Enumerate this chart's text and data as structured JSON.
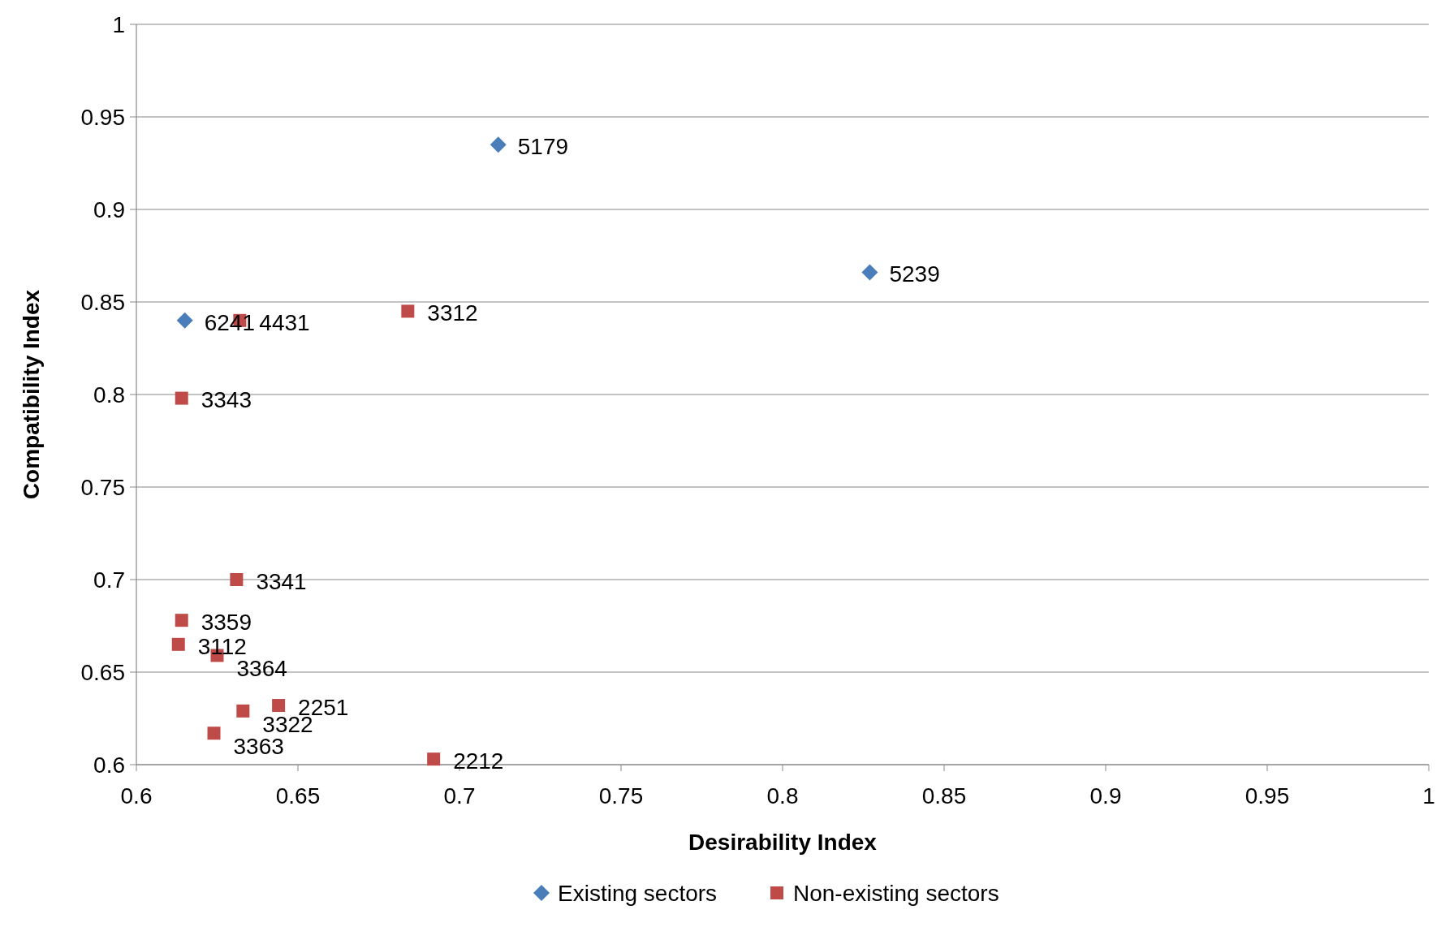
{
  "chart_data": {
    "type": "scatter",
    "xlabel": "Desirability Index",
    "ylabel": "Compatibility Index",
    "xlim": [
      0.6,
      1
    ],
    "xticks": [
      0.6,
      0.65,
      0.7,
      0.75,
      0.8,
      0.85,
      0.9,
      0.95,
      1
    ],
    "ylim": [
      0.6,
      1
    ],
    "yticks": [
      0.6,
      0.65,
      0.7,
      0.75,
      0.8,
      0.85,
      0.9,
      0.95,
      1
    ],
    "grid": "y",
    "legend": "bottom",
    "series": [
      {
        "name": "Existing sectors",
        "color": "#4a7ebb",
        "marker": "diamond",
        "x": [
          0.712,
          0.827,
          0.615
        ],
        "values": [
          0.935,
          0.866,
          0.84
        ]
      },
      {
        "name": "Non-existing sectors",
        "color": "#be4b48",
        "marker": "square",
        "x": [
          0.632,
          0.684,
          0.614,
          0.631,
          0.614,
          0.613,
          0.625,
          0.644,
          0.633,
          0.624,
          0.692
        ],
        "values": [
          0.84,
          0.845,
          0.798,
          0.7,
          0.678,
          0.665,
          0.659,
          0.632,
          0.629,
          0.617,
          0.603
        ]
      }
    ],
    "annotations": [
      {
        "text": "5179",
        "x": 0.712,
        "y": 0.935
      },
      {
        "text": "5239",
        "x": 0.827,
        "y": 0.866
      },
      {
        "text": "6241",
        "x": 0.615,
        "y": 0.84
      },
      {
        "text": "4431",
        "x": 0.632,
        "y": 0.84
      },
      {
        "text": "3312",
        "x": 0.684,
        "y": 0.845
      },
      {
        "text": "3343",
        "x": 0.614,
        "y": 0.798
      },
      {
        "text": "3341",
        "x": 0.631,
        "y": 0.7
      },
      {
        "text": "3359",
        "x": 0.614,
        "y": 0.678
      },
      {
        "text": "3112",
        "x": 0.613,
        "y": 0.665
      },
      {
        "text": "3364",
        "x": 0.625,
        "y": 0.659
      },
      {
        "text": "2251",
        "x": 0.644,
        "y": 0.632
      },
      {
        "text": "3322",
        "x": 0.633,
        "y": 0.629
      },
      {
        "text": "3363",
        "x": 0.624,
        "y": 0.617
      },
      {
        "text": "2212",
        "x": 0.692,
        "y": 0.603
      }
    ]
  }
}
